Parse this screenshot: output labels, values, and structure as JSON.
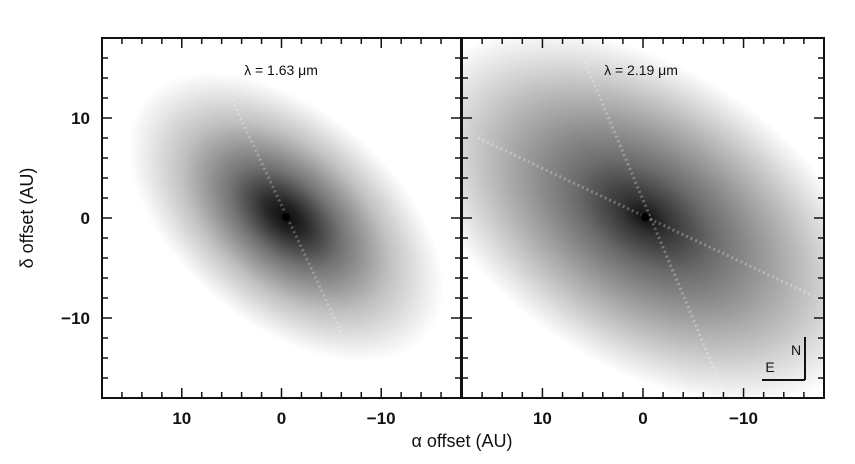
{
  "figure": {
    "x_axis_title": "α offset (AU)",
    "y_axis_title": "δ offset (AU)"
  },
  "panels": [
    {
      "label": "λ = 1.63 μm"
    },
    {
      "label": "λ = 2.19 μm"
    }
  ],
  "x_ticks": [
    {
      "value": 10,
      "label": "10"
    },
    {
      "value": 0,
      "label": "0"
    },
    {
      "value": -10,
      "label": "−10"
    }
  ],
  "y_ticks": [
    {
      "value": 10,
      "label": "10"
    },
    {
      "value": 0,
      "label": "0"
    },
    {
      "value": -10,
      "label": "−10"
    }
  ],
  "x_range": [
    18,
    -18
  ],
  "y_range": [
    -18,
    18
  ],
  "compass": {
    "north": "N",
    "east": "E"
  }
}
